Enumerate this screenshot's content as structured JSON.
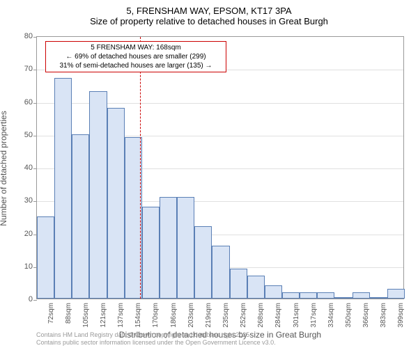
{
  "title_line1": "5, FRENSHAM WAY, EPSOM, KT17 3PA",
  "title_line2": "Size of property relative to detached houses in Great Burgh",
  "y_axis_title": "Number of detached properties",
  "x_axis_title": "Distribution of detached houses by size in Great Burgh",
  "footer_line1": "Contains HM Land Registry data © Crown copyright and database right 2025.",
  "footer_line2": "Contains public sector information licensed under the Open Government Licence v3.0.",
  "annotation": {
    "line1": "5 FRENSHAM WAY: 168sqm",
    "line2": "← 69% of detached houses are smaller (299)",
    "line3": "31% of semi-detached houses are larger (135) →"
  },
  "chart": {
    "type": "histogram",
    "ylim": [
      0,
      80
    ],
    "ytick_step": 10,
    "background_color": "#ffffff",
    "grid_color": "#e0e0e0",
    "bar_fill": "#d9e4f5",
    "bar_border": "#5a7fb5",
    "marker_color": "#cc0000",
    "marker_x_value": 168,
    "x_labels": [
      "72sqm",
      "88sqm",
      "105sqm",
      "121sqm",
      "137sqm",
      "154sqm",
      "170sqm",
      "186sqm",
      "203sqm",
      "219sqm",
      "235sqm",
      "252sqm",
      "268sqm",
      "284sqm",
      "301sqm",
      "317sqm",
      "334sqm",
      "350sqm",
      "366sqm",
      "383sqm",
      "399sqm"
    ],
    "heights": [
      25,
      67,
      50,
      63,
      58,
      49,
      28,
      31,
      31,
      22,
      16,
      9,
      7,
      4,
      2,
      2,
      2,
      0,
      2,
      0,
      3
    ],
    "n_bars": 21,
    "annotation_box_border": "#cc0000",
    "title_fontsize": 13,
    "axis_label_fontsize": 12,
    "tick_fontsize": 11
  }
}
